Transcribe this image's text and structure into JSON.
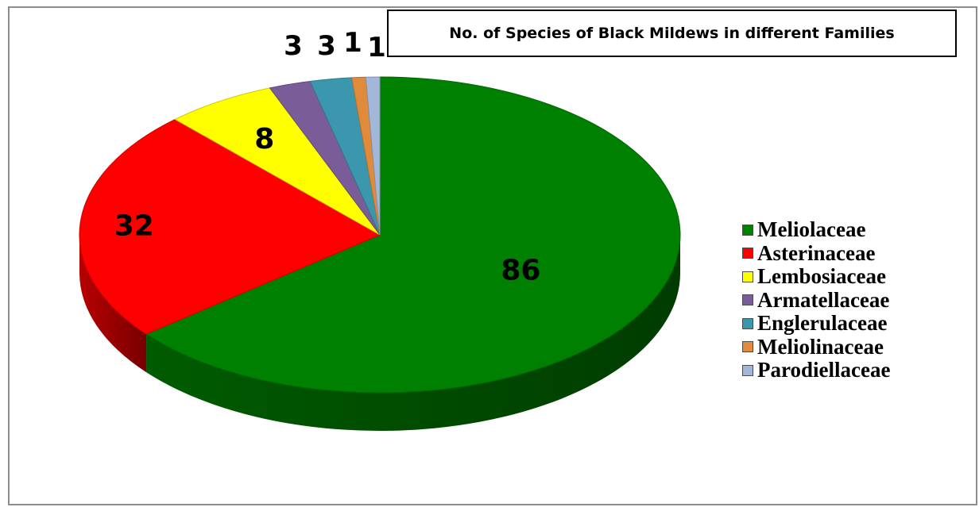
{
  "chart_data": {
    "type": "pie",
    "title": "No. of Species of Black Mildews in different Families",
    "categories": [
      "Meliolaceae",
      "Asterinaceae",
      "Lembosiaceae",
      "Armatellaceae",
      "Englerulaceae",
      "Meliolinaceae",
      "Parodiellaceae"
    ],
    "values": [
      86,
      32,
      8,
      3,
      3,
      1,
      1
    ],
    "data_labels": [
      "86",
      "32",
      "8",
      "3",
      "3",
      "1",
      "1"
    ],
    "colors": [
      "#008000",
      "#ff0000",
      "#ffff00",
      "#7a5c99",
      "#3b97ad",
      "#e08a3c",
      "#a3b7d9"
    ],
    "legend_position": "right",
    "style": "3d"
  }
}
